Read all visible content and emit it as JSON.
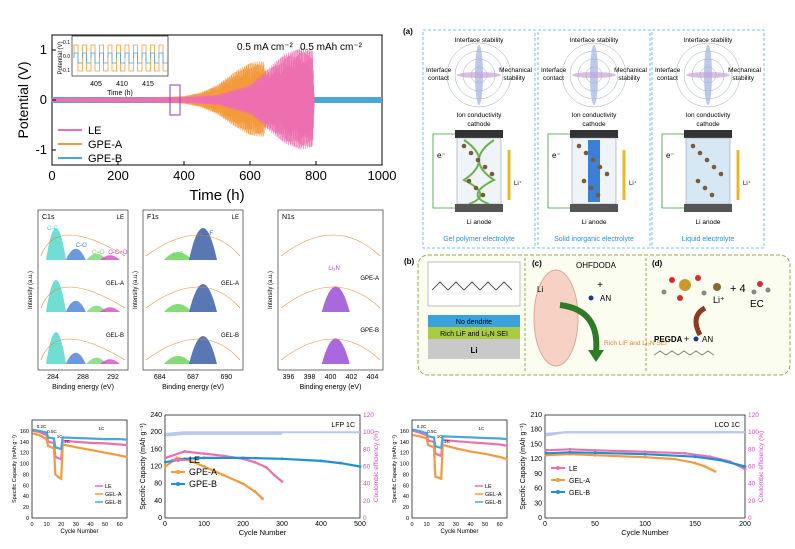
{
  "voltage_panel": {
    "ylabel": "Potential (V)",
    "xlabel": "Time (h)",
    "conditions": [
      "0.5 mA cm⁻²",
      "0.5 mAh cm⁻²"
    ],
    "legend": [
      "LE",
      "GPE-A",
      "GPE-B"
    ],
    "colors": {
      "LE": "#ee6fb0",
      "GPE-A": "#f39a3c",
      "GPE-B": "#4aa8d8"
    },
    "inset": {
      "ylabel": "Potential (V)",
      "xlabel": "Time (h)",
      "xticks": [
        "405",
        "410",
        "415"
      ],
      "yticks": [
        "0.1",
        "0.0",
        "-0.1"
      ]
    }
  },
  "xps": {
    "panels": [
      {
        "element": "C1s",
        "tag": "LE",
        "peaks": [
          "C-C",
          "C-O",
          "C=O",
          "O-C=O"
        ],
        "rows": [
          "GEL-A",
          "GEL-B"
        ],
        "xticks": [
          "284",
          "288",
          "292"
        ]
      },
      {
        "element": "F1s",
        "tag": "LE",
        "peaks": [
          "Li-F",
          "C-F"
        ],
        "rows": [
          "GEL-A",
          "GEL-B"
        ],
        "xticks": [
          "684",
          "687",
          "690"
        ]
      },
      {
        "element": "N1s",
        "tag": "",
        "peaks": [
          "Li₃N"
        ],
        "rows": [
          "GPE-A",
          "GPE-B"
        ],
        "xticks": [
          "396",
          "398",
          "400",
          "402",
          "404"
        ]
      }
    ],
    "xlabel": "Binding energy (eV)",
    "ylabel": "Intensity (a.u.)"
  },
  "schematic": {
    "panel_a_label": "(a)",
    "radar_axes": [
      "Interface stability",
      "Interface contact",
      "Mechanical stability",
      "Ion conductivity"
    ],
    "columns": [
      {
        "name": "Gel polymer electrolyte"
      },
      {
        "name": "Solid inorganic electrolyte"
      },
      {
        "name": "Liquid electrolyte"
      }
    ],
    "cathode": "cathode",
    "anode": "Li anode",
    "electron": "e⁻",
    "ion": "Li⁺",
    "panel_b_label": "(b)",
    "panel_c_label": "(c)",
    "panel_d_label": "(d)",
    "b_layers": [
      "No dendrite",
      "Rich LiF and Li₃N SEI",
      "Li"
    ],
    "c_labels": [
      "OHFDODA",
      "+",
      "AN",
      "Li",
      "Rich LiF and Li₃N SEI"
    ],
    "d_labels": [
      "Li⁺",
      "+ 4",
      "EC",
      "PEGDA",
      "+",
      "AN"
    ]
  },
  "cycling": {
    "small_ylabel": "Specific Capacity (mAh g⁻¹)",
    "xlabel": "Cycle Number",
    "rates": [
      "0.2C",
      "0.5C",
      "1C",
      "2C",
      "1C"
    ],
    "small_legend": [
      "LE",
      "GEL-A",
      "GEL-B"
    ],
    "lfp": {
      "title": "LFP 1C",
      "ylabel": "Specific Capacity (mAh g⁻¹)",
      "y2label": "Coulombic efficiency (%)",
      "legend": [
        "LE",
        "GPE-A",
        "GPE-B"
      ]
    },
    "lco": {
      "title": "LCO 1C",
      "ylabel": "Specific Capacity (mAh g⁻¹)",
      "y2label": "Coulombic efficiency (%)",
      "legend": [
        "LE",
        "GEL-A",
        "GEL-B"
      ]
    }
  },
  "chart_data": [
    {
      "type": "line",
      "title": "",
      "xlabel": "Time (h)",
      "ylabel": "Potential (V)",
      "xlim": [
        0,
        1000
      ],
      "ylim": [
        -1.3,
        1.3
      ],
      "xticks": [
        0,
        200,
        400,
        600,
        800,
        1000
      ],
      "yticks": [
        -1,
        0,
        1
      ],
      "series": [
        {
          "name": "LE",
          "envelope": [
            [
              0,
              0.04
            ],
            [
              200,
              0.05
            ],
            [
              400,
              0.06
            ],
            [
              500,
              0.1
            ],
            [
              600,
              0.3
            ],
            [
              650,
              0.6
            ],
            [
              700,
              0.9
            ],
            [
              750,
              1.05
            ],
            [
              790,
              1.0
            ],
            [
              795,
              0
            ]
          ]
        },
        {
          "name": "GPE-A",
          "envelope": [
            [
              0,
              0.04
            ],
            [
              300,
              0.05
            ],
            [
              400,
              0.08
            ],
            [
              450,
              0.15
            ],
            [
              500,
              0.3
            ],
            [
              550,
              0.55
            ],
            [
              600,
              0.75
            ],
            [
              640,
              0.78
            ],
            [
              660,
              0.3
            ],
            [
              670,
              0
            ]
          ]
        },
        {
          "name": "GPE-B",
          "envelope": [
            [
              0,
              0.04
            ],
            [
              1000,
              0.04
            ]
          ]
        }
      ]
    },
    {
      "type": "line",
      "title": "",
      "xlabel": "Cycle Number",
      "ylabel": "Specific Capacity (mAh g⁻¹)",
      "xlim": [
        0,
        65
      ],
      "ylim": [
        0,
        180
      ],
      "xticks": [
        0,
        10,
        20,
        30,
        40,
        50,
        60
      ],
      "yticks": [
        0,
        20,
        40,
        60,
        80,
        100,
        120,
        140,
        160
      ],
      "series": [
        {
          "name": "LE",
          "x": [
            1,
            5,
            10,
            11,
            15,
            16,
            18,
            20,
            21,
            30,
            40,
            50,
            60,
            65
          ],
          "y": [
            160,
            158,
            152,
            140,
            138,
            112,
            110,
            108,
            142,
            140,
            138,
            137,
            135,
            134
          ]
        },
        {
          "name": "GEL-A",
          "x": [
            1,
            5,
            10,
            11,
            15,
            16,
            18,
            20,
            21,
            30,
            40,
            50,
            60,
            65
          ],
          "y": [
            155,
            152,
            145,
            132,
            128,
            80,
            75,
            72,
            135,
            130,
            125,
            120,
            115,
            112
          ]
        },
        {
          "name": "GEL-B",
          "x": [
            1,
            5,
            10,
            11,
            15,
            16,
            18,
            20,
            21,
            30,
            40,
            50,
            60,
            65
          ],
          "y": [
            162,
            160,
            157,
            148,
            146,
            130,
            128,
            127,
            148,
            147,
            146,
            145,
            145,
            144
          ]
        }
      ]
    },
    {
      "type": "line",
      "title": "LFP 1C",
      "xlabel": "Cycle Number",
      "ylabel": "Specific Capacity (mAh g⁻¹)",
      "y2label": "Coulombic efficiency (%)",
      "xlim": [
        0,
        500
      ],
      "ylim": [
        0,
        240
      ],
      "y2lim": [
        0,
        120
      ],
      "xticks": [
        0,
        100,
        200,
        300,
        400,
        500
      ],
      "yticks": [
        0,
        40,
        80,
        120,
        160,
        200,
        240
      ],
      "y2ticks": [
        0,
        20,
        40,
        60,
        80,
        100,
        120
      ],
      "series": [
        {
          "name": "LE",
          "x": [
            1,
            50,
            100,
            150,
            200,
            230,
            260,
            280,
            300
          ],
          "y": [
            140,
            155,
            150,
            145,
            138,
            130,
            118,
            100,
            85
          ]
        },
        {
          "name": "GPE-A",
          "x": [
            1,
            30,
            60,
            100,
            150,
            200,
            230,
            250
          ],
          "y": [
            120,
            140,
            135,
            120,
            100,
            80,
            62,
            45
          ]
        },
        {
          "name": "GPE-B",
          "x": [
            1,
            50,
            100,
            200,
            300,
            400,
            450,
            500
          ],
          "y": [
            130,
            138,
            140,
            140,
            138,
            133,
            128,
            120
          ]
        },
        {
          "name": "CE-LE",
          "x": [
            1,
            50,
            300
          ],
          "y": [
            96,
            98,
            98
          ]
        },
        {
          "name": "CE-GPE-A",
          "x": [
            1,
            50,
            250
          ],
          "y": [
            97,
            99,
            99
          ]
        },
        {
          "name": "CE-GPE-B",
          "x": [
            1,
            50,
            500
          ],
          "y": [
            98,
            100,
            100
          ]
        }
      ]
    },
    {
      "type": "line",
      "title": "",
      "xlabel": "Cycle Number",
      "ylabel": "Specific Capacity (mAh g⁻¹)",
      "xlim": [
        0,
        65
      ],
      "ylim": [
        0,
        180
      ],
      "xticks": [
        0,
        10,
        20,
        30,
        40,
        50,
        60
      ],
      "yticks": [
        0,
        20,
        40,
        60,
        80,
        100,
        120,
        140,
        160
      ],
      "series": [
        {
          "name": "LE",
          "x": [
            1,
            5,
            10,
            11,
            15,
            16,
            18,
            20,
            21,
            30,
            40,
            50,
            60,
            65
          ],
          "y": [
            160,
            157,
            152,
            142,
            140,
            118,
            116,
            114,
            143,
            141,
            139,
            137,
            135,
            133
          ]
        },
        {
          "name": "GEL-A",
          "x": [
            1,
            5,
            10,
            11,
            15,
            16,
            18,
            20,
            21,
            30,
            40,
            50,
            60,
            65
          ],
          "y": [
            152,
            150,
            146,
            134,
            130,
            76,
            74,
            72,
            134,
            128,
            122,
            118,
            112,
            108
          ]
        },
        {
          "name": "GEL-B",
          "x": [
            1,
            5,
            10,
            11,
            15,
            16,
            18,
            20,
            21,
            30,
            40,
            50,
            60,
            65
          ],
          "y": [
            162,
            160,
            156,
            150,
            148,
            132,
            130,
            129,
            150,
            149,
            148,
            147,
            146,
            145
          ]
        }
      ]
    },
    {
      "type": "line",
      "title": "LCO 1C",
      "xlabel": "Cycle Number",
      "ylabel": "Specific Capacity (mAh g⁻¹)",
      "y2label": "Coulombic efficiency (%)",
      "xlim": [
        0,
        200
      ],
      "ylim": [
        0,
        210
      ],
      "y2lim": [
        0,
        120
      ],
      "xticks": [
        0,
        50,
        100,
        150,
        200
      ],
      "yticks": [
        0,
        30,
        60,
        90,
        120,
        150,
        180,
        210
      ],
      "y2ticks": [
        0,
        20,
        40,
        60,
        80,
        100,
        120
      ],
      "series": [
        {
          "name": "LE",
          "x": [
            1,
            25,
            50,
            100,
            140,
            165,
            185,
            200
          ],
          "y": [
            138,
            140,
            138,
            135,
            132,
            125,
            115,
            100
          ]
        },
        {
          "name": "GEL-A",
          "x": [
            1,
            25,
            50,
            100,
            130,
            150,
            160,
            170
          ],
          "y": [
            128,
            130,
            128,
            124,
            120,
            112,
            105,
            95
          ]
        },
        {
          "name": "GEL-B",
          "x": [
            1,
            25,
            50,
            100,
            150,
            175,
            200
          ],
          "y": [
            132,
            134,
            133,
            130,
            125,
            118,
            105
          ]
        },
        {
          "name": "CE-LE",
          "x": [
            1,
            20,
            200
          ],
          "y": [
            97,
            100,
            100
          ]
        },
        {
          "name": "CE-GEL-A",
          "x": [
            1,
            20,
            170
          ],
          "y": [
            96,
            100,
            100
          ]
        },
        {
          "name": "CE-GEL-B",
          "x": [
            1,
            20,
            200
          ],
          "y": [
            98,
            100,
            100
          ]
        }
      ]
    }
  ]
}
